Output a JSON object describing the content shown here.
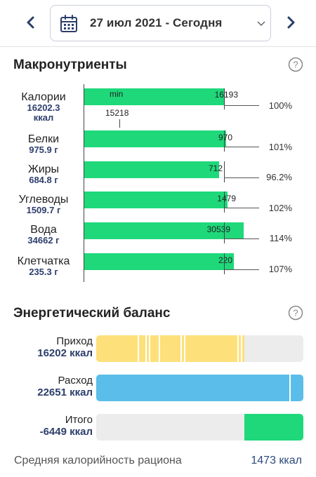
{
  "header": {
    "date_label": "27 июл 2021 - Сегодня",
    "prev_icon": "chevron-left-icon",
    "next_icon": "chevron-right-icon",
    "calendar_icon": "calendar-icon",
    "dropdown_icon": "chevron-down-icon"
  },
  "macros": {
    "title": "Макронутриенты",
    "help_icon": "help-circle-icon",
    "bar_color": "#1ed87a",
    "min_label": "min",
    "min_value": "15218",
    "items": [
      {
        "name": "Калории",
        "value": "16202.3",
        "unit": "ккал",
        "target": "16193",
        "percent": "100%",
        "fill_ratio": 1.0
      },
      {
        "name": "Белки",
        "value": "975.9 г",
        "target": "970",
        "percent": "101%",
        "fill_ratio": 1.01
      },
      {
        "name": "Жиры",
        "value": "684.8 г",
        "target": "712",
        "percent": "96.2%",
        "fill_ratio": 0.962
      },
      {
        "name": "Углеводы",
        "value": "1509.7 г",
        "target": "1479",
        "percent": "102%",
        "fill_ratio": 1.02
      },
      {
        "name": "Вода",
        "value": "34662 г",
        "target": "30539",
        "percent": "114%",
        "fill_ratio": 1.14
      },
      {
        "name": "Клетчатка",
        "value": "235.3 г",
        "target": "220",
        "percent": "107%",
        "fill_ratio": 1.07
      }
    ]
  },
  "energy": {
    "title": "Энергетический баланс",
    "help_icon": "help-circle-icon",
    "rows": [
      {
        "name": "Приход",
        "value": "16202 ккал",
        "color": "#fde07a",
        "fill_ratio": 0.715
      },
      {
        "name": "Расход",
        "value": "22651 ккал",
        "color": "#5bbde9",
        "fill_ratio": 1.0
      },
      {
        "name": "Итого",
        "value": "-6449 ккал",
        "color": "#1ed87a",
        "fill_ratio": 0.285
      }
    ]
  },
  "footer": {
    "label": "Средняя калорийность рациона",
    "value": "1473 ккал"
  }
}
